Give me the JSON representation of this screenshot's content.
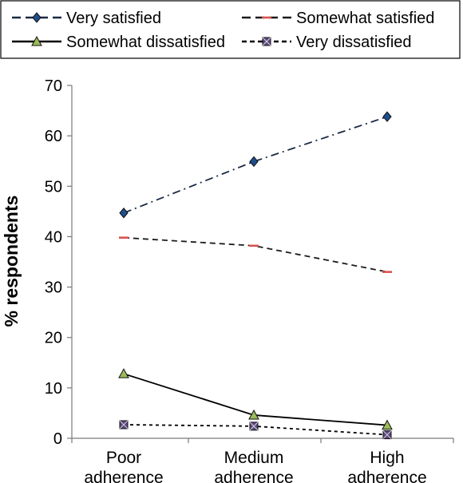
{
  "chart_data": {
    "type": "line",
    "title": "",
    "xlabel": "",
    "ylabel": "% respondents",
    "categories": [
      [
        "Poor",
        "adherence"
      ],
      [
        "Medium",
        "adherence"
      ],
      [
        "High",
        "adherence"
      ]
    ],
    "ylim": [
      0,
      70
    ],
    "yticks": [
      0,
      10,
      20,
      30,
      40,
      50,
      60,
      70
    ],
    "grid": false,
    "legend_position": "top",
    "series": [
      {
        "name": "Very satisfied",
        "values": [
          44.7,
          54.9,
          63.8
        ],
        "color": "#1b2a44",
        "dash": "dash-dot",
        "marker": "diamond",
        "marker_color": "#1f4e8c"
      },
      {
        "name": "Somewhat satisfied",
        "values": [
          39.8,
          38.2,
          33.0
        ],
        "color": "#1b1b1b",
        "dash": "dashed",
        "marker": "dash",
        "marker_color": "#d9534f"
      },
      {
        "name": "Somewhat dissatisfied",
        "values": [
          12.8,
          4.6,
          2.6
        ],
        "color": "#000000",
        "dash": "solid",
        "marker": "triangle",
        "marker_color": "#9bbb59"
      },
      {
        "name": "Very dissatisfied",
        "values": [
          2.7,
          2.4,
          0.7
        ],
        "color": "#000000",
        "dash": "dotted",
        "marker": "square-x",
        "marker_color": "#5b4a7a"
      }
    ]
  }
}
